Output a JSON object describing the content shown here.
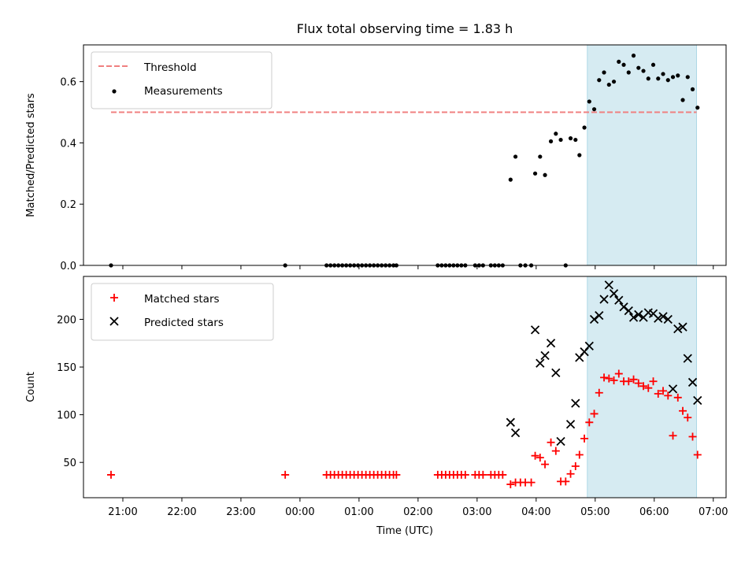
{
  "chart_data": [
    {
      "type": "scatter",
      "title": "Flux total observing time = 1.83 h",
      "xlabel": "",
      "ylabel": "Matched/Predicted stars",
      "xlim": [
        "20:20",
        "07:13"
      ],
      "ylim": [
        0,
        0.72
      ],
      "x_ticks": [
        "21:00",
        "22:00",
        "23:00",
        "00:00",
        "01:00",
        "02:00",
        "03:00",
        "04:00",
        "05:00",
        "06:00",
        "07:00"
      ],
      "x_tick_labels_visible": false,
      "y_ticks": [
        "0.0",
        "0.2",
        "0.4",
        "0.6"
      ],
      "grid": false,
      "legend_position": "top-left",
      "highlight_span": {
        "start": "04:52",
        "end": "06:43",
        "color": "#add8e6"
      },
      "threshold": {
        "name": "Threshold",
        "value": 0.5,
        "start": "20:48",
        "end": "06:43",
        "color": "#f08080",
        "style": "dashed"
      },
      "series": [
        {
          "name": "Measurements",
          "color": "#000000",
          "marker": "dot",
          "points": [
            [
              "20:48",
              0.0
            ],
            [
              "23:45",
              0.0
            ],
            [
              "00:27",
              0.0
            ],
            [
              "00:31",
              0.0
            ],
            [
              "00:35",
              0.0
            ],
            [
              "00:39",
              0.0
            ],
            [
              "00:43",
              0.0
            ],
            [
              "00:47",
              0.0
            ],
            [
              "00:51",
              0.0
            ],
            [
              "00:55",
              0.0
            ],
            [
              "00:59",
              0.0
            ],
            [
              "01:03",
              0.0
            ],
            [
              "01:07",
              0.0
            ],
            [
              "01:11",
              0.0
            ],
            [
              "01:15",
              0.0
            ],
            [
              "01:19",
              0.0
            ],
            [
              "01:23",
              0.0
            ],
            [
              "01:27",
              0.0
            ],
            [
              "01:31",
              0.0
            ],
            [
              "01:35",
              0.0
            ],
            [
              "01:38",
              0.0
            ],
            [
              "02:20",
              0.0
            ],
            [
              "02:24",
              0.0
            ],
            [
              "02:28",
              0.0
            ],
            [
              "02:32",
              0.0
            ],
            [
              "02:36",
              0.0
            ],
            [
              "02:40",
              0.0
            ],
            [
              "02:44",
              0.0
            ],
            [
              "02:48",
              0.0
            ],
            [
              "02:58",
              0.0
            ],
            [
              "03:02",
              0.0
            ],
            [
              "03:06",
              0.0
            ],
            [
              "03:14",
              0.0
            ],
            [
              "03:18",
              0.0
            ],
            [
              "03:22",
              0.0
            ],
            [
              "03:26",
              0.0
            ],
            [
              "03:34",
              0.28
            ],
            [
              "03:39",
              0.355
            ],
            [
              "03:44",
              0.0
            ],
            [
              "03:49",
              0.0
            ],
            [
              "03:55",
              0.0
            ],
            [
              "03:59",
              0.3
            ],
            [
              "04:04",
              0.355
            ],
            [
              "04:09",
              0.295
            ],
            [
              "04:15",
              0.405
            ],
            [
              "04:20",
              0.43
            ],
            [
              "04:25",
              0.41
            ],
            [
              "04:30",
              0.0
            ],
            [
              "04:35",
              0.415
            ],
            [
              "04:40",
              0.41
            ],
            [
              "04:44",
              0.36
            ],
            [
              "04:49",
              0.45
            ],
            [
              "04:54",
              0.535
            ],
            [
              "04:59",
              0.51
            ],
            [
              "05:04",
              0.605
            ],
            [
              "05:09",
              0.63
            ],
            [
              "05:14",
              0.59
            ],
            [
              "05:19",
              0.6
            ],
            [
              "05:24",
              0.665
            ],
            [
              "05:29",
              0.655
            ],
            [
              "05:34",
              0.63
            ],
            [
              "05:39",
              0.685
            ],
            [
              "05:44",
              0.645
            ],
            [
              "05:49",
              0.635
            ],
            [
              "05:54",
              0.61
            ],
            [
              "05:59",
              0.655
            ],
            [
              "06:04",
              0.61
            ],
            [
              "06:09",
              0.625
            ],
            [
              "06:14",
              0.605
            ],
            [
              "06:19",
              0.615
            ],
            [
              "06:24",
              0.62
            ],
            [
              "06:29",
              0.54
            ],
            [
              "06:34",
              0.615
            ],
            [
              "06:39",
              0.575
            ],
            [
              "06:44",
              0.515
            ]
          ]
        }
      ]
    },
    {
      "type": "scatter",
      "title": "",
      "xlabel": "Time (UTC)",
      "ylabel": "Count",
      "xlim": [
        "20:20",
        "07:13"
      ],
      "ylim": [
        13,
        245
      ],
      "x_ticks": [
        "21:00",
        "22:00",
        "23:00",
        "00:00",
        "01:00",
        "02:00",
        "03:00",
        "04:00",
        "05:00",
        "06:00",
        "07:00"
      ],
      "y_ticks": [
        "50",
        "100",
        "150",
        "200"
      ],
      "grid": false,
      "legend_position": "top-left",
      "highlight_span": {
        "start": "04:52",
        "end": "06:43",
        "color": "#add8e6"
      },
      "series": [
        {
          "name": "Matched stars",
          "color": "#ff0000",
          "marker": "plus",
          "points": [
            [
              "20:48",
              37
            ],
            [
              "23:45",
              37
            ],
            [
              "00:27",
              37
            ],
            [
              "00:31",
              37
            ],
            [
              "00:35",
              37
            ],
            [
              "00:39",
              37
            ],
            [
              "00:43",
              37
            ],
            [
              "00:47",
              37
            ],
            [
              "00:51",
              37
            ],
            [
              "00:55",
              37
            ],
            [
              "00:59",
              37
            ],
            [
              "01:03",
              37
            ],
            [
              "01:07",
              37
            ],
            [
              "01:11",
              37
            ],
            [
              "01:15",
              37
            ],
            [
              "01:19",
              37
            ],
            [
              "01:23",
              37
            ],
            [
              "01:27",
              37
            ],
            [
              "01:31",
              37
            ],
            [
              "01:35",
              37
            ],
            [
              "01:38",
              37
            ],
            [
              "02:20",
              37
            ],
            [
              "02:24",
              37
            ],
            [
              "02:28",
              37
            ],
            [
              "02:32",
              37
            ],
            [
              "02:36",
              37
            ],
            [
              "02:40",
              37
            ],
            [
              "02:44",
              37
            ],
            [
              "02:48",
              37
            ],
            [
              "02:58",
              37
            ],
            [
              "03:02",
              37
            ],
            [
              "03:06",
              37
            ],
            [
              "03:14",
              37
            ],
            [
              "03:18",
              37
            ],
            [
              "03:22",
              37
            ],
            [
              "03:26",
              37
            ],
            [
              "03:34",
              27
            ],
            [
              "03:39",
              29
            ],
            [
              "03:44",
              29
            ],
            [
              "03:49",
              29
            ],
            [
              "03:55",
              29
            ],
            [
              "03:59",
              57
            ],
            [
              "04:04",
              55
            ],
            [
              "04:09",
              48
            ],
            [
              "04:15",
              71
            ],
            [
              "04:20",
              62
            ],
            [
              "04:25",
              30
            ],
            [
              "04:30",
              30
            ],
            [
              "04:35",
              38
            ],
            [
              "04:40",
              46
            ],
            [
              "04:44",
              58
            ],
            [
              "04:49",
              75
            ],
            [
              "04:54",
              92
            ],
            [
              "04:59",
              101
            ],
            [
              "05:04",
              123
            ],
            [
              "05:09",
              139
            ],
            [
              "05:14",
              138
            ],
            [
              "05:19",
              136
            ],
            [
              "05:24",
              143
            ],
            [
              "05:29",
              135
            ],
            [
              "05:34",
              135
            ],
            [
              "05:39",
              137
            ],
            [
              "05:44",
              133
            ],
            [
              "05:49",
              130
            ],
            [
              "05:54",
              128
            ],
            [
              "05:59",
              135
            ],
            [
              "06:04",
              122
            ],
            [
              "06:09",
              125
            ],
            [
              "06:14",
              120
            ],
            [
              "06:19",
              78
            ],
            [
              "06:24",
              118
            ],
            [
              "06:29",
              104
            ],
            [
              "06:34",
              97
            ],
            [
              "06:39",
              77
            ],
            [
              "06:44",
              58
            ]
          ]
        },
        {
          "name": "Predicted stars",
          "color": "#000000",
          "marker": "x",
          "points": [
            [
              "03:34",
              92
            ],
            [
              "03:39",
              81
            ],
            [
              "03:59",
              189
            ],
            [
              "04:04",
              154
            ],
            [
              "04:09",
              162
            ],
            [
              "04:15",
              175
            ],
            [
              "04:20",
              144
            ],
            [
              "04:25",
              72
            ],
            [
              "04:35",
              90
            ],
            [
              "04:40",
              112
            ],
            [
              "04:44",
              160
            ],
            [
              "04:49",
              166
            ],
            [
              "04:54",
              172
            ],
            [
              "04:59",
              200
            ],
            [
              "05:04",
              204
            ],
            [
              "05:09",
              221
            ],
            [
              "05:14",
              236
            ],
            [
              "05:19",
              227
            ],
            [
              "05:24",
              220
            ],
            [
              "05:29",
              213
            ],
            [
              "05:34",
              209
            ],
            [
              "05:39",
              202
            ],
            [
              "05:44",
              205
            ],
            [
              "05:49",
              202
            ],
            [
              "05:54",
              207
            ],
            [
              "05:59",
              206
            ],
            [
              "06:04",
              201
            ],
            [
              "06:09",
              203
            ],
            [
              "06:14",
              200
            ],
            [
              "06:19",
              127
            ],
            [
              "06:24",
              190
            ],
            [
              "06:29",
              192
            ],
            [
              "06:34",
              159
            ],
            [
              "06:39",
              134
            ],
            [
              "06:44",
              115
            ]
          ]
        }
      ]
    }
  ]
}
